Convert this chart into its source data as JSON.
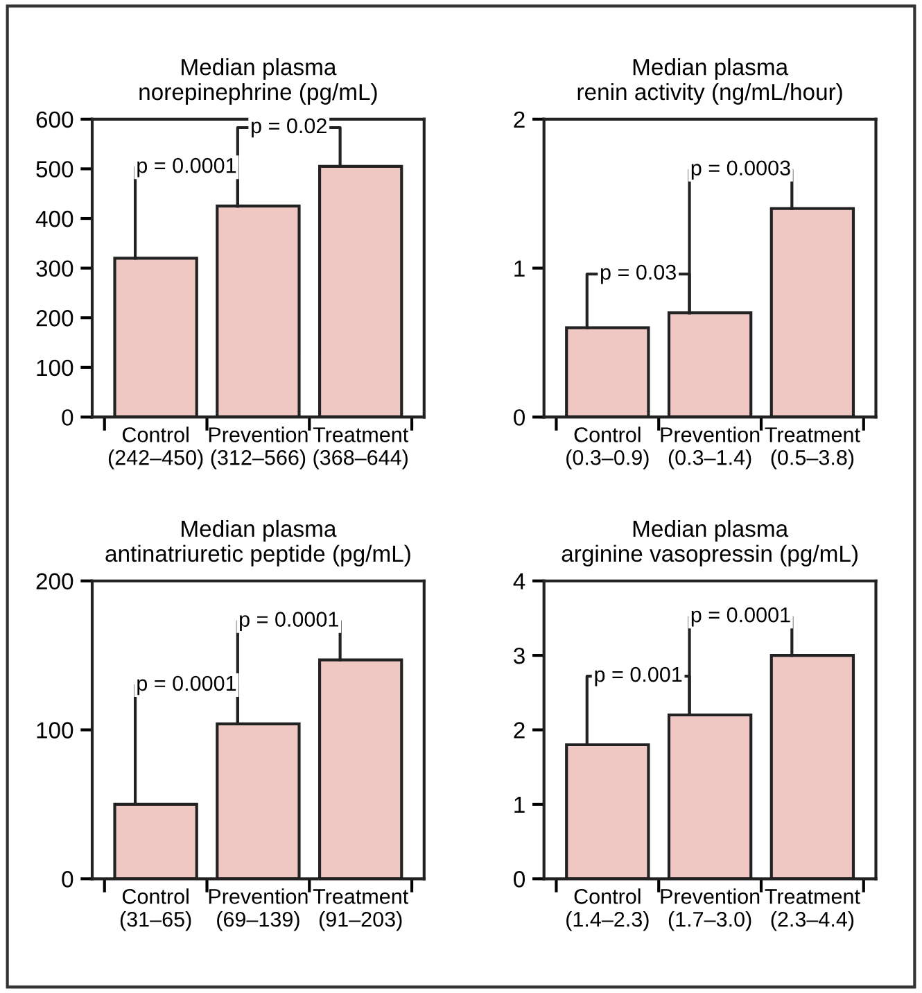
{
  "chart_data": [
    {
      "type": "bar",
      "title": "Median plasma\nnorepinephrine (pg/mL)",
      "categories": [
        "Control\n(242–450)",
        "Prevention\n(312–566)",
        "Treatment\n(368–644)"
      ],
      "values": [
        320,
        425,
        505
      ],
      "color": "#efc8c4",
      "ylim": [
        0,
        600
      ],
      "yticks": [
        0,
        100,
        200,
        300,
        400,
        500,
        600
      ],
      "grid": false,
      "legend": false,
      "annotations": [
        "p = 0.0001",
        "p = 0.02"
      ]
    },
    {
      "type": "bar",
      "title": "Median plasma\nrenin activity (ng/mL/hour)",
      "categories": [
        "Control\n(0.3–0.9)",
        "Prevention\n(0.3–1.4)",
        "Treatment\n(0.5–3.8)"
      ],
      "values": [
        0.6,
        0.7,
        1.4
      ],
      "color": "#efc8c4",
      "ylim": [
        0,
        2
      ],
      "yticks": [
        0,
        1,
        2
      ],
      "grid": false,
      "legend": false,
      "annotations": [
        "p = 0.03",
        "p = 0.0003"
      ]
    },
    {
      "type": "bar",
      "title": "Median plasma\nantinatriuretic peptide (pg/mL)",
      "categories": [
        "Control\n(31–65)",
        "Prevention\n(69–139)",
        "Treatment\n(91–203)"
      ],
      "values": [
        50,
        104,
        147
      ],
      "color": "#efc8c4",
      "ylim": [
        0,
        200
      ],
      "yticks": [
        0,
        100,
        200
      ],
      "grid": false,
      "legend": false,
      "annotations": [
        "p = 0.0001",
        "p = 0.0001"
      ]
    },
    {
      "type": "bar",
      "title": "Median plasma\narginine vasopressin (pg/mL)",
      "categories": [
        "Control\n(1.4–2.3)",
        "Prevention\n(1.7–3.0)",
        "Treatment\n(2.3–4.4)"
      ],
      "values": [
        1.8,
        2.2,
        3.0
      ],
      "color": "#efc8c4",
      "ylim": [
        0,
        4
      ],
      "yticks": [
        0,
        1,
        2,
        3,
        4
      ],
      "grid": false,
      "legend": false,
      "annotations": [
        "p = 0.001",
        "p = 0.0001"
      ]
    }
  ]
}
